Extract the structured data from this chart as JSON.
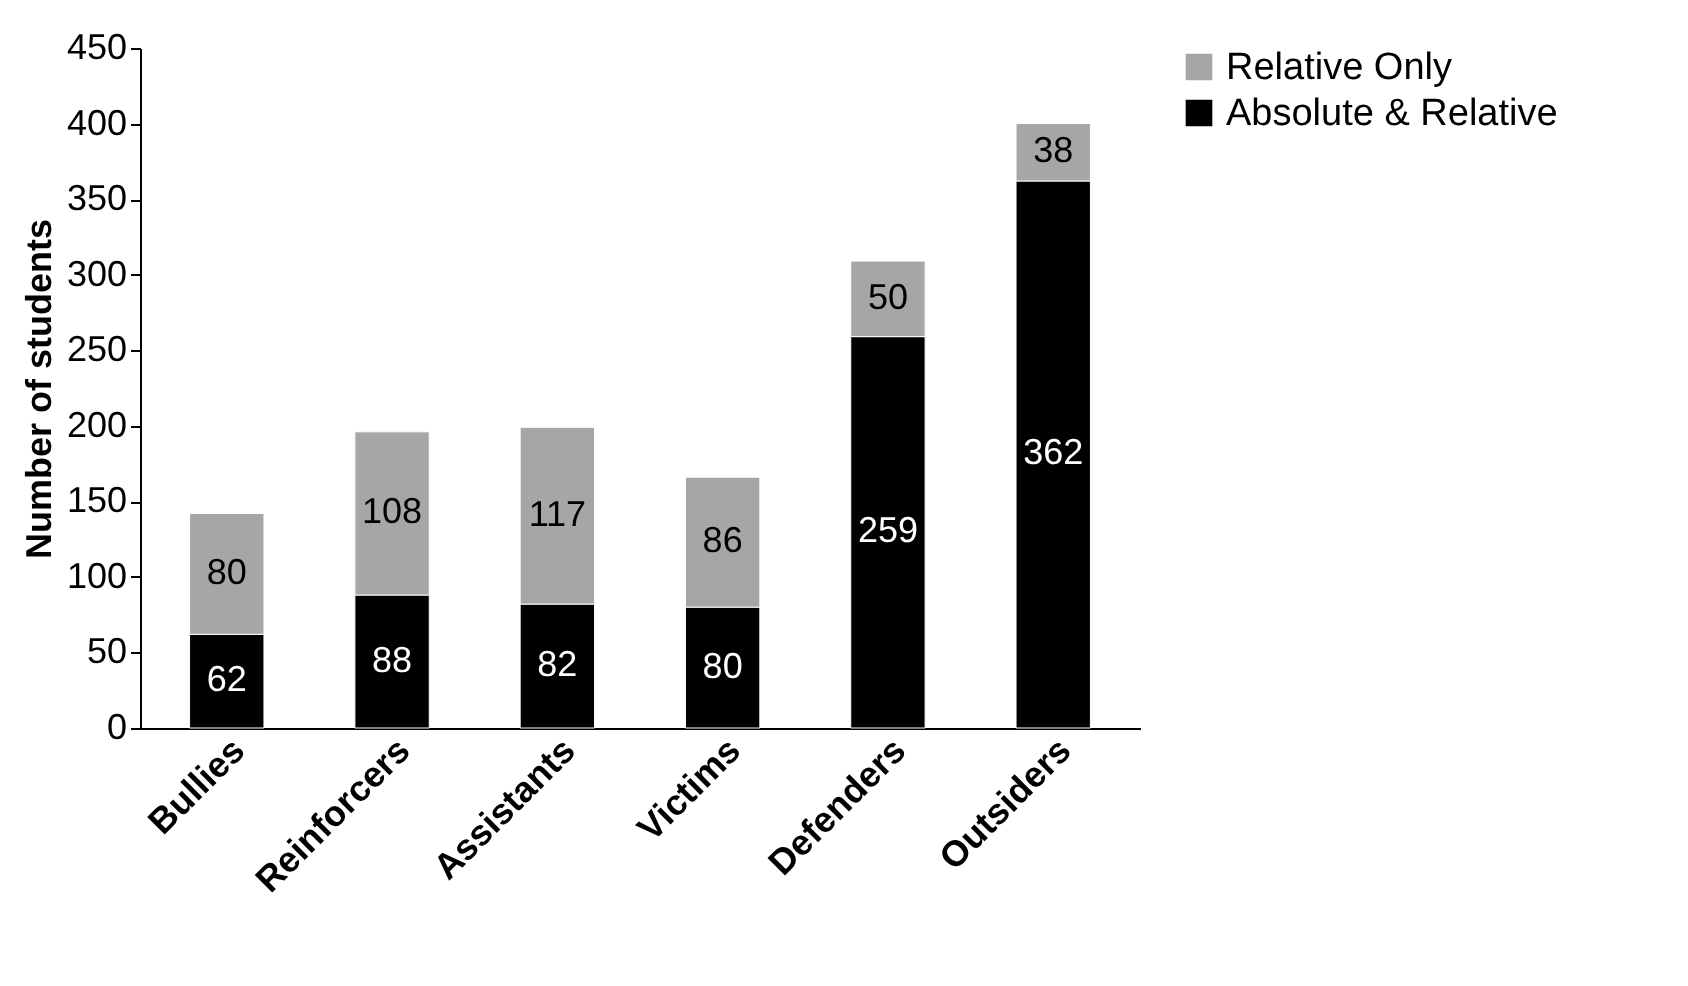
{
  "chart_data": {
    "type": "bar",
    "stacked": true,
    "ylabel": "Number of students",
    "categories": [
      "Bullies",
      "Reinforcers",
      "Assistants",
      "Victims",
      "Defenders",
      "Outsiders"
    ],
    "series": [
      {
        "name": "Absolute & Relative",
        "color": "#000000",
        "values": [
          62,
          88,
          82,
          80,
          259,
          362
        ]
      },
      {
        "name": "Relative Only",
        "color": "#a6a6a6",
        "values": [
          80,
          108,
          117,
          86,
          50,
          38
        ]
      }
    ],
    "ylim": [
      0,
      450
    ],
    "yticks": [
      0,
      50,
      100,
      150,
      200,
      250,
      300,
      350,
      400,
      450
    ],
    "grid": false,
    "legend": "right",
    "data_labels": true
  }
}
